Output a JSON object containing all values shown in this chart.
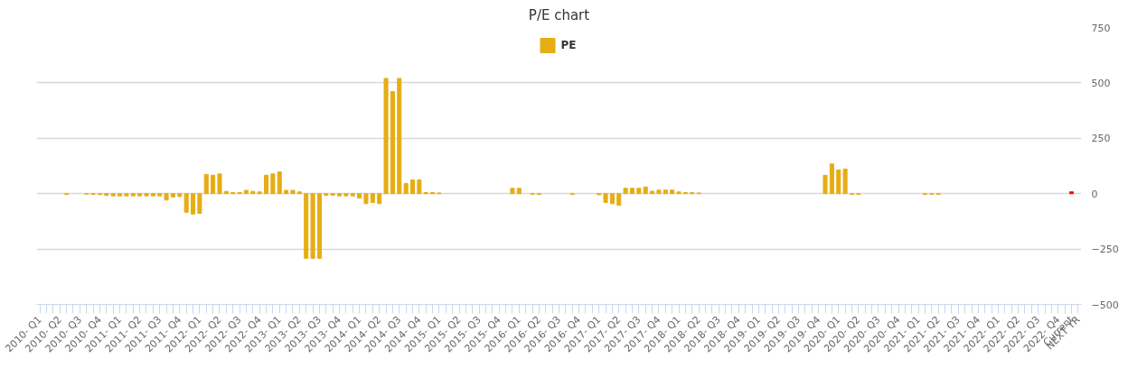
{
  "chart_data": {
    "type": "bar",
    "title": "P/E chart",
    "categories": [
      "2010- Q1",
      null,
      null,
      "2010- Q2",
      null,
      null,
      "2010- Q3",
      null,
      null,
      "2010- Q4",
      null,
      null,
      "2011- Q1",
      null,
      null,
      "2011- Q2",
      null,
      null,
      "2011- Q3",
      null,
      null,
      "2011- Q4",
      null,
      null,
      "2012- Q1",
      null,
      null,
      "2012- Q2",
      null,
      null,
      "2012- Q3",
      null,
      null,
      "2012- Q4",
      null,
      null,
      "2013- Q1",
      null,
      null,
      "2013- Q2",
      null,
      null,
      "2013- Q3",
      null,
      null,
      "2013- Q4",
      null,
      null,
      "2014- Q1",
      null,
      null,
      "2014- Q2",
      null,
      null,
      "2014- Q3",
      null,
      null,
      "2014- Q4",
      null,
      null,
      "2015- Q1",
      null,
      null,
      "2015- Q2",
      null,
      null,
      "2015- Q3",
      null,
      null,
      "2015- Q4",
      null,
      null,
      "2016- Q1",
      null,
      null,
      "2016- Q2",
      null,
      null,
      "2016- Q3",
      null,
      null,
      "2016- Q4",
      null,
      null,
      "2017- Q1",
      null,
      null,
      "2017- Q2",
      null,
      null,
      "2017- Q3",
      null,
      null,
      "2017- Q4",
      null,
      null,
      "2018- Q1",
      null,
      null,
      "2018- Q2",
      null,
      null,
      "2018- Q3",
      null,
      null,
      "2018- Q4",
      null,
      null,
      "2019- Q1",
      null,
      null,
      "2019- Q2",
      null,
      null,
      "2019- Q3",
      null,
      null,
      "2019- Q4",
      null,
      null,
      "2020- Q1",
      null,
      null,
      "2020- Q2",
      null,
      null,
      "2020- Q3",
      null,
      null,
      "2020- Q4",
      null,
      null,
      "2021- Q1",
      null,
      null,
      "2021- Q2",
      null,
      null,
      "2021- Q3",
      null,
      null,
      "2021- Q4",
      null,
      null,
      "2022- Q1",
      null,
      null,
      "2022- Q2",
      null,
      null,
      "2022- Q3",
      null,
      null,
      "2022- Q4",
      null,
      "Current",
      "NEXT YR"
    ],
    "series": [
      {
        "name": "PE",
        "color": "#e6ad14",
        "values": [
          null,
          null,
          null,
          null,
          -3,
          null,
          null,
          -2,
          -3,
          -4,
          -8,
          -10,
          -10,
          -10,
          -10,
          -10,
          -10,
          -10,
          -10,
          -29,
          -15,
          -13,
          -84,
          -92,
          -89,
          87,
          83,
          89,
          10,
          5,
          5,
          15,
          10,
          8,
          83,
          89,
          98,
          15,
          15,
          8,
          -292,
          -292,
          -292,
          -8,
          -7,
          -10,
          -10,
          -10,
          -20,
          -45,
          -40,
          -45,
          520,
          461,
          520,
          46,
          62,
          62,
          5,
          5,
          3,
          null,
          null,
          null,
          null,
          null,
          null,
          null,
          null,
          null,
          null,
          24,
          24,
          null,
          -3,
          -3,
          null,
          null,
          null,
          null,
          -3,
          null,
          null,
          null,
          -5,
          -40,
          -45,
          -52,
          24,
          24,
          24,
          30,
          11,
          16,
          16,
          16,
          8,
          5,
          5,
          3,
          null,
          null,
          null,
          null,
          null,
          null,
          null,
          null,
          null,
          null,
          null,
          null,
          null,
          null,
          null,
          null,
          null,
          null,
          83,
          134,
          107,
          111,
          -3,
          -3,
          null,
          null,
          null,
          null,
          null,
          null,
          null,
          null,
          null,
          -3,
          -3,
          -3,
          null,
          null,
          null,
          null,
          null,
          null,
          null,
          null,
          null,
          null,
          null,
          null,
          null,
          null,
          null,
          null,
          null,
          null,
          null,
          null,
          null
        ]
      },
      {
        "color": "#ff0000",
        "values": [
          null,
          null,
          null,
          null,
          null,
          null,
          null,
          null,
          null,
          null,
          null,
          null,
          null,
          null,
          null,
          null,
          null,
          null,
          null,
          null,
          null,
          null,
          null,
          null,
          null,
          null,
          null,
          null,
          null,
          null,
          null,
          null,
          null,
          null,
          null,
          null,
          null,
          null,
          null,
          null,
          null,
          null,
          null,
          null,
          null,
          null,
          null,
          null,
          null,
          null,
          null,
          null,
          null,
          null,
          null,
          null,
          null,
          null,
          null,
          null,
          null,
          null,
          null,
          null,
          null,
          null,
          null,
          null,
          null,
          null,
          null,
          null,
          null,
          null,
          null,
          null,
          null,
          null,
          null,
          null,
          null,
          null,
          null,
          null,
          null,
          null,
          null,
          null,
          null,
          null,
          null,
          null,
          null,
          null,
          null,
          null,
          null,
          null,
          null,
          null,
          null,
          null,
          null,
          null,
          null,
          null,
          null,
          null,
          null,
          null,
          null,
          null,
          null,
          null,
          null,
          null,
          null,
          null,
          null,
          null,
          null,
          null,
          null,
          null,
          null,
          null,
          null,
          null,
          null,
          null,
          null,
          null,
          null,
          null,
          null,
          null,
          null,
          null,
          null,
          null,
          null,
          null,
          null,
          null,
          null,
          null,
          null,
          null,
          null,
          null,
          null,
          null,
          null,
          null,
          null,
          8,
          null
        ]
      }
    ],
    "ylim": [
      -500,
      750
    ],
    "yticks": [
      -500,
      -250,
      0,
      250,
      500,
      750
    ],
    "grid": "y",
    "legend": "top"
  }
}
